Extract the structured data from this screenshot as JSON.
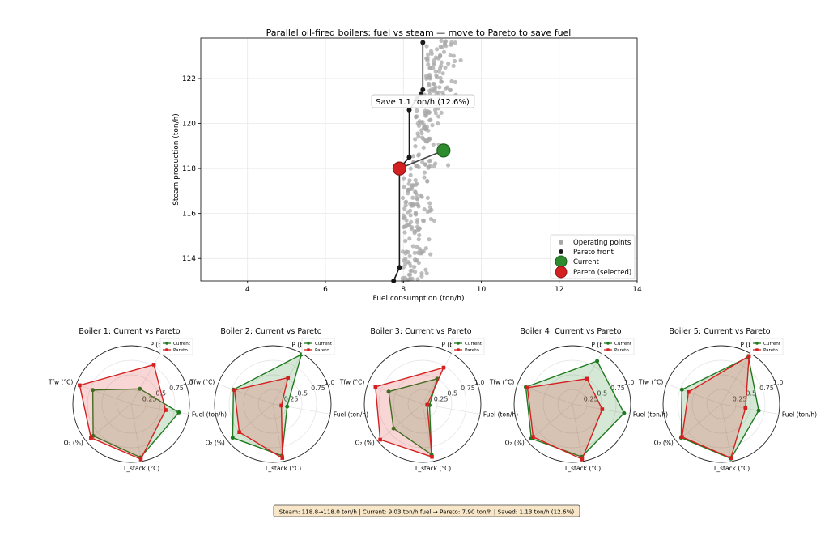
{
  "chart_data": [
    {
      "type": "scatter",
      "title": "Parallel oil-fired boilers: fuel vs steam — move to Pareto to save fuel",
      "xlabel": "Fuel consumption (ton/h)",
      "ylabel": "Steam production (ton/h)",
      "xlim": [
        2.8,
        14
      ],
      "ylim": [
        113,
        123.8
      ],
      "xticks": [
        4,
        6,
        8,
        10,
        12,
        14
      ],
      "yticks": [
        114,
        116,
        118,
        120,
        122
      ],
      "grid": true,
      "legend_position": "bottom-right",
      "legend": [
        "Operating points",
        "Pareto front",
        "Current",
        "Pareto (selected)"
      ],
      "operating_points_x_range": [
        8.2,
        9.4
      ],
      "pareto_front": [
        {
          "x": 7.75,
          "y": 113.0
        },
        {
          "x": 7.9,
          "y": 113.6
        },
        {
          "x": 7.9,
          "y": 118.0
        },
        {
          "x": 8.15,
          "y": 118.5
        },
        {
          "x": 8.15,
          "y": 120.6
        },
        {
          "x": 8.35,
          "y": 121.1
        },
        {
          "x": 8.45,
          "y": 121.3
        },
        {
          "x": 8.5,
          "y": 121.5
        },
        {
          "x": 8.5,
          "y": 123.6
        }
      ],
      "current": {
        "x": 9.03,
        "y": 118.8
      },
      "pareto_selected": {
        "x": 7.9,
        "y": 118.0
      },
      "annotation": "Save 1.1 ton/h (12.6%)",
      "annotation_at": {
        "x": 8.3,
        "y": 121.0
      }
    },
    {
      "type": "radar",
      "title": "Boiler 1: Current vs Pareto",
      "axes": [
        "P (bar)",
        "Fuel (ton/h)",
        "T_stack (°C)",
        "O₂ (%)",
        "Tfw (°C)"
      ],
      "rticks": [
        "0.25",
        "0.5",
        "0.75",
        "1.0"
      ],
      "series": [
        {
          "name": "Current",
          "values": [
            0.3,
            0.83,
            0.93,
            0.85,
            0.7
          ]
        },
        {
          "name": "Pareto",
          "values": [
            0.78,
            0.6,
            0.96,
            0.9,
            0.94
          ]
        }
      ]
    },
    {
      "type": "radar",
      "title": "Boiler 2: Current vs Pareto",
      "axes": [
        "P (bar)",
        "Fuel (ton/h)",
        "T_stack (°C)",
        "O₂ (%)",
        "Tfw (°C)"
      ],
      "rticks": [
        "0.25",
        "0.5",
        "0.75",
        "1.0"
      ],
      "series": [
        {
          "name": "Current",
          "values": [
            0.98,
            0.25,
            0.9,
            0.9,
            0.72
          ]
        },
        {
          "name": "Pareto",
          "values": [
            0.52,
            0.15,
            0.94,
            0.75,
            0.7
          ]
        }
      ]
    },
    {
      "type": "radar",
      "title": "Boiler 3: Current vs Pareto",
      "axes": [
        "P (bar)",
        "Fuel (ton/h)",
        "T_stack (°C)",
        "O₂ (%)",
        "Tfw (°C)"
      ],
      "rticks": [
        "0.25",
        "0.5",
        "0.75",
        "1.0"
      ],
      "series": [
        {
          "name": "Current",
          "values": [
            0.5,
            0.12,
            0.88,
            0.65,
            0.62
          ]
        },
        {
          "name": "Pareto",
          "values": [
            0.72,
            0.08,
            0.92,
            0.95,
            0.86
          ]
        }
      ]
    },
    {
      "type": "radar",
      "title": "Boiler 4: Current vs Pareto",
      "axes": [
        "P (bar)",
        "Fuel (ton/h)",
        "T_stack (°C)",
        "O₂ (%)",
        "Tfw (°C)"
      ],
      "rticks": [
        "0.25",
        "0.5",
        "0.75",
        "1.0"
      ],
      "series": [
        {
          "name": "Current",
          "values": [
            0.85,
            0.9,
            0.92,
            0.92,
            0.85
          ]
        },
        {
          "name": "Pareto",
          "values": [
            0.5,
            0.52,
            0.96,
            0.88,
            0.82
          ]
        }
      ]
    },
    {
      "type": "radar",
      "title": "Boiler 5: Current vs Pareto",
      "axes": [
        "P (bar)",
        "Fuel (ton/h)",
        "T_stack (°C)",
        "O₂ (%)",
        "Tfw (°C)"
      ],
      "rticks": [
        "0.25",
        "0.5",
        "0.75",
        "1.0"
      ],
      "series": [
        {
          "name": "Current",
          "values": [
            0.93,
            0.65,
            0.95,
            0.9,
            0.72
          ]
        },
        {
          "name": "Pareto",
          "values": [
            0.95,
            0.42,
            0.94,
            0.88,
            0.6
          ]
        }
      ]
    }
  ],
  "summary": "Steam: 118.8→118.0 ton/h  |  Current: 9.03 ton/h fuel  →  Pareto: 7.90 ton/h  |  Saved: 1.13 ton/h (12.6%)",
  "colors": {
    "current": "#1f7a1f",
    "current_fill": "#2e8b2e",
    "pareto": "#d42020",
    "pareto_fill": "#e03030",
    "points": "#a8a8a8",
    "front": "#1a1a1a",
    "summary_bg": "#f7e6c8"
  }
}
